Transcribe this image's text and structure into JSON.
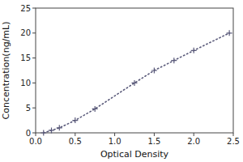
{
  "chart_data": {
    "type": "line",
    "xlabel": "Optical Density",
    "ylabel": "Concentration(ng/mL)",
    "x": [
      0.1,
      0.2,
      0.3,
      0.5,
      0.75,
      1.25,
      1.5,
      1.75,
      2.0,
      2.45
    ],
    "values": [
      0.0,
      0.5,
      1.0,
      2.5,
      4.8,
      10.0,
      12.5,
      14.5,
      16.5,
      20.0
    ],
    "color": "#5a5a7a",
    "marker": "plus",
    "line_style": "dotted",
    "xlim": [
      0,
      2.5
    ],
    "ylim": [
      0,
      25
    ],
    "xticks": [
      {
        "value": 0,
        "label": "0.0"
      },
      0.5,
      {
        "value": 1,
        "label": "1.0"
      },
      1.5,
      {
        "value": 2,
        "label": "2.0"
      },
      2.5
    ],
    "yticks": [
      0,
      5,
      10,
      15,
      20,
      25
    ]
  }
}
